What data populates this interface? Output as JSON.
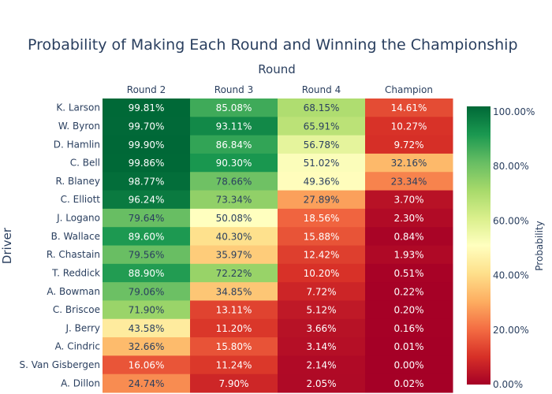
{
  "chart_data": {
    "type": "heatmap",
    "title": "Probability of Making Each Round and Winning the Championship",
    "xlabel": "Round",
    "ylabel": "Driver",
    "x": [
      "Round 2",
      "Round 3",
      "Round 4",
      "Champion"
    ],
    "y": [
      "K. Larson",
      "W. Byron",
      "D. Hamlin",
      "C. Bell",
      "R. Blaney",
      "C. Elliott",
      "J. Logano",
      "B. Wallace",
      "R. Chastain",
      "T. Reddick",
      "A. Bowman",
      "C. Briscoe",
      "J. Berry",
      "A. Cindric",
      "S. Van Gisbergen",
      "A. Dillon"
    ],
    "z": [
      [
        99.81,
        85.08,
        68.15,
        14.61
      ],
      [
        99.7,
        93.11,
        65.91,
        10.27
      ],
      [
        99.9,
        86.84,
        56.78,
        9.72
      ],
      [
        99.86,
        90.3,
        51.02,
        32.16
      ],
      [
        98.77,
        78.66,
        49.36,
        23.34
      ],
      [
        96.24,
        73.34,
        27.89,
        3.7
      ],
      [
        79.64,
        50.08,
        18.56,
        2.3
      ],
      [
        89.6,
        40.3,
        15.88,
        0.84
      ],
      [
        79.56,
        35.97,
        12.42,
        1.93
      ],
      [
        88.9,
        72.22,
        10.2,
        0.51
      ],
      [
        79.06,
        34.85,
        7.72,
        0.22
      ],
      [
        71.9,
        13.11,
        5.12,
        0.2
      ],
      [
        43.58,
        11.2,
        3.66,
        0.16
      ],
      [
        32.66,
        15.8,
        3.14,
        0.01
      ],
      [
        16.06,
        11.24,
        2.14,
        0.0
      ],
      [
        24.74,
        7.9,
        2.05,
        0.02
      ]
    ],
    "value_suffix": "%",
    "colorscale": "RdYlGn",
    "zrange": [
      0,
      100
    ],
    "colorbar": {
      "title": "Probability",
      "ticks": [
        0,
        20,
        40,
        60,
        80,
        100
      ],
      "tick_labels": [
        "0.00%",
        "20.00%",
        "40.00%",
        "60.00%",
        "80.00%",
        "100.00%"
      ]
    }
  }
}
